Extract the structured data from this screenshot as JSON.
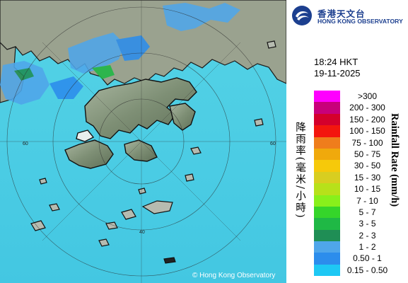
{
  "logo": {
    "chinese": "香港天文台",
    "english": "HONG KONG OBSERVATORY"
  },
  "map": {
    "copyright": "© Hong Kong Observatory",
    "range_ring_labels": [
      "60",
      "40",
      "60"
    ]
  },
  "timestamp": {
    "time": "18:24 HKT",
    "date": "19-11-2025"
  },
  "legend": {
    "title_en": "Rainfall Rate (mm/h)",
    "title_zh": "降雨率(毫米/小時)",
    "items": [
      {
        "label": ">300",
        "color": "#ff00ff"
      },
      {
        "label": "200 - 300",
        "color": "#c8007a"
      },
      {
        "label": "150 - 200",
        "color": "#d4002c"
      },
      {
        "label": "100 - 150",
        "color": "#f3160e"
      },
      {
        "label": "75 - 100",
        "color": "#ef7d1c"
      },
      {
        "label": "50 - 75",
        "color": "#f0a90c"
      },
      {
        "label": "30 - 50",
        "color": "#f6c90a"
      },
      {
        "label": "15 - 30",
        "color": "#d8ce20"
      },
      {
        "label": "10 - 15",
        "color": "#b7e11a"
      },
      {
        "label": "7 - 10",
        "color": "#88f01b"
      },
      {
        "label": "5 - 7",
        "color": "#35d52a"
      },
      {
        "label": "3 - 5",
        "color": "#1fb845"
      },
      {
        "label": "2 - 3",
        "color": "#1f8e55"
      },
      {
        "label": "1 - 2",
        "color": "#4fa6ea"
      },
      {
        "label": "0.50 - 1",
        "color": "#2c8dec"
      },
      {
        "label": "0.15 - 0.50",
        "color": "#1ec8f4"
      }
    ]
  }
}
